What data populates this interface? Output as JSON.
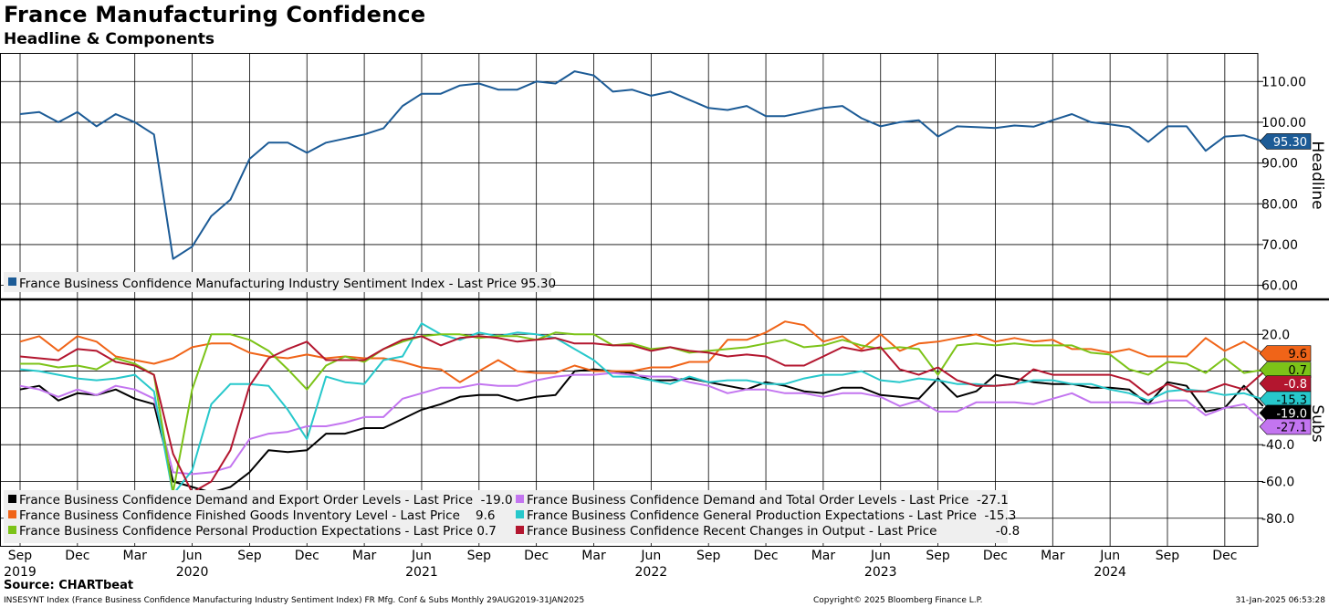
{
  "header": {
    "title": "France Manufacturing Confidence",
    "subtitle": "Headline & Components"
  },
  "footer": {
    "source": "Source: CHARTbeat",
    "description": "INSESYNT Index (France Business Confidence Manufacturing Industry Sentiment Index) FR Mfg. Conf & Subs  Monthly 29AUG2019-31JAN2025",
    "copyright": "Copyright© 2025 Bloomberg Finance L.P.",
    "timestamp": "31-Jan-2025 06:53:28"
  },
  "chart_data": {
    "type": "line",
    "x_axis": {
      "ticks": [
        {
          "month": 0,
          "label": "Sep"
        },
        {
          "month": 3,
          "label": "Dec"
        },
        {
          "month": 6,
          "label": "Mar"
        },
        {
          "month": 9,
          "label": "Jun"
        },
        {
          "month": 12,
          "label": "Sep"
        },
        {
          "month": 15,
          "label": "Dec"
        },
        {
          "month": 18,
          "label": "Mar"
        },
        {
          "month": 21,
          "label": "Jun"
        },
        {
          "month": 24,
          "label": "Sep"
        },
        {
          "month": 27,
          "label": "Dec"
        },
        {
          "month": 30,
          "label": "Mar"
        },
        {
          "month": 33,
          "label": "Jun"
        },
        {
          "month": 36,
          "label": "Sep"
        },
        {
          "month": 39,
          "label": "Dec"
        },
        {
          "month": 42,
          "label": "Mar"
        },
        {
          "month": 45,
          "label": "Jun"
        },
        {
          "month": 48,
          "label": "Sep"
        },
        {
          "month": 51,
          "label": "Dec"
        },
        {
          "month": 54,
          "label": "Mar"
        },
        {
          "month": 57,
          "label": "Jun"
        },
        {
          "month": 60,
          "label": "Sep"
        },
        {
          "month": 63,
          "label": "Dec"
        }
      ],
      "years": [
        {
          "month": 0,
          "label": "2019"
        },
        {
          "month": 9,
          "label": "2020"
        },
        {
          "month": 21,
          "label": "2021"
        },
        {
          "month": 33,
          "label": "2022"
        },
        {
          "month": 45,
          "label": "2023"
        },
        {
          "month": 57,
          "label": "2024"
        }
      ],
      "first_month": "Sep 2019",
      "last_month": "Jan 2025"
    },
    "panels": [
      {
        "id": "top",
        "axis_title": "Headline",
        "ylim": [
          57,
          117
        ],
        "yticks": [
          60,
          70,
          80,
          90,
          100,
          110
        ],
        "ytick_labels": [
          "60.00",
          "70.00",
          "80.00",
          "90.00",
          "100.00",
          "110.00"
        ],
        "grid": true,
        "series": [
          {
            "name": "France Business Confidence Manufacturing Industry Sentiment Index",
            "legend": "France Business Confidence Manufacturing Industry Sentiment Index - Last Price 95.30",
            "color": "#1c5b96",
            "last_label": "95.30",
            "values": [
              102,
              102.5,
              100,
              102.5,
              99,
              102,
              100,
              97,
              66.5,
              69.5,
              77,
              81,
              91,
              95,
              95,
              92.5,
              95,
              96,
              97,
              98.5,
              104,
              107,
              107,
              109,
              109.5,
              108,
              108,
              110,
              109.5,
              112.5,
              111.5,
              107.5,
              108,
              106.5,
              107.5,
              105.5,
              103.5,
              103,
              104,
              101.5,
              101.5,
              102.5,
              103.5,
              104,
              101,
              99,
              100,
              100.5,
              96.5,
              99,
              98.8,
              98.6,
              99.2,
              98.9,
              100.5,
              102,
              100,
              99.5,
              98.8,
              95.2,
              99,
              99,
              93,
              96.5,
              96.8,
              95.3
            ]
          }
        ]
      },
      {
        "id": "bottom",
        "axis_title": "Subs",
        "ylim": [
          -95,
          38
        ],
        "yticks": [
          -80,
          -60,
          -40,
          -20,
          0,
          20
        ],
        "ytick_labels": [
          "-80.0",
          "-60.0",
          "-40.0",
          "",
          "",
          "20.0"
        ],
        "grid": true,
        "series": [
          {
            "name": "France Business Confidence Demand and Export Order Levels",
            "legend": "France Business Confidence Demand and Export Order Levels - Last Price  -19.0",
            "color": "#000000",
            "last_label": "-19.0",
            "values": [
              -10,
              -8,
              -16,
              -12,
              -13,
              -10,
              -15,
              -18,
              -60,
              -63,
              -66,
              -63,
              -55,
              -43,
              -44,
              -43,
              -34,
              -34,
              -31,
              -31,
              -26,
              -21,
              -18,
              -14,
              -13,
              -13,
              -16,
              -14,
              -13,
              0,
              1,
              0,
              -1,
              -5,
              -5,
              -4,
              -6,
              -8,
              -10,
              -6,
              -8,
              -11,
              -12,
              -9,
              -9,
              -13,
              -14,
              -15,
              -4,
              -14,
              -11,
              -2,
              -4,
              -6,
              -7,
              -7,
              -9,
              -9,
              -10,
              -18,
              -6,
              -8,
              -22,
              -20,
              -8,
              -19
            ]
          },
          {
            "name": "France Business Confidence Demand and Total Order Levels",
            "legend": "France Business Confidence Demand and Total Order Levels - Last Price  -27.1",
            "color": "#c375f0",
            "last_label": "-27.1",
            "values": [
              -8,
              -10,
              -14,
              -10,
              -13,
              -8,
              -10,
              -15,
              -55,
              -56,
              -55,
              -52,
              -37,
              -34,
              -33,
              -30,
              -30,
              -28,
              -25,
              -25,
              -15,
              -12,
              -9,
              -9,
              -7,
              -8,
              -8,
              -5,
              -3,
              -2,
              -2,
              -1,
              -2,
              -3,
              -3,
              -6,
              -8,
              -12,
              -10,
              -10,
              -12,
              -12,
              -14,
              -12,
              -12,
              -14,
              -19,
              -16,
              -22,
              -22,
              -17,
              -17,
              -17,
              -18,
              -15,
              -12,
              -17,
              -17,
              -17,
              -18,
              -16,
              -16,
              -24,
              -20,
              -18,
              -27.1
            ]
          },
          {
            "name": "France Business Confidence Finished Goods Inventory Level",
            "legend": "France Business Confidence Finished Goods Inventory Level - Last Price    9.6",
            "color": "#f06418",
            "last_label": "9.6",
            "values": [
              16,
              19,
              11,
              19,
              16,
              8,
              6,
              4,
              7,
              13,
              15,
              15,
              10,
              8,
              7,
              9,
              7,
              8,
              7,
              7,
              5,
              2,
              1,
              -6,
              0,
              6,
              0,
              -1,
              -1,
              3,
              0,
              0,
              0,
              2,
              2,
              5,
              5,
              17,
              17,
              21,
              27,
              25,
              16,
              19,
              12,
              20,
              11,
              15,
              16,
              18,
              20,
              16,
              18,
              16,
              17,
              12,
              12,
              10,
              12,
              8,
              8,
              8,
              18,
              11,
              16,
              9.6
            ]
          },
          {
            "name": "France Business Confidence General Production Expectations",
            "legend": "France Business Confidence General Production Expectations - Last Price  -15.3",
            "color": "#27c8cb",
            "last_label": "-15.3",
            "values": [
              1,
              0,
              -2,
              -4,
              -5,
              -4,
              -2,
              -11,
              -67,
              -54,
              -18,
              -7,
              -7,
              -8,
              -21,
              -37,
              -3,
              -6,
              -7,
              6,
              8,
              26,
              20,
              17,
              21,
              19,
              21,
              20,
              18,
              12,
              6,
              -3,
              -3,
              -5,
              -7,
              -3,
              -6,
              -5,
              -5,
              -7,
              -7,
              -4,
              -2,
              -2,
              0,
              -5,
              -6,
              -4,
              -5,
              -7,
              -7,
              -8,
              -7,
              -5,
              -5,
              -7,
              -7,
              -10,
              -12,
              -16,
              -11,
              -10,
              -11,
              -13,
              -12,
              -15.3
            ]
          },
          {
            "name": "France Business Confidence Personal Production Expectations",
            "legend": "France Business Confidence Personal Production Expectations - Last Price 0.7",
            "color": "#7cc318",
            "last_label": "0.7",
            "values": [
              4,
              4,
              2,
              3,
              1,
              7,
              4,
              -2,
              -66,
              -10,
              20,
              20,
              17,
              11,
              1,
              -10,
              3,
              8,
              5,
              12,
              16,
              19,
              20,
              20,
              18,
              19,
              19,
              17,
              21,
              20,
              20,
              14,
              15,
              12,
              13,
              10,
              11,
              12,
              13,
              15,
              17,
              13,
              14,
              17,
              14,
              12,
              13,
              12,
              -2,
              14,
              15,
              14,
              15,
              14,
              14,
              14,
              10,
              9,
              1,
              -2,
              5,
              4,
              -1,
              7,
              -1,
              0.7
            ]
          },
          {
            "name": "France Business Confidence Recent Changes in Output",
            "legend": "France Business Confidence Recent Changes in Output - Last Price               -0.8",
            "color": "#b3162f",
            "last_label": "-0.8",
            "values": [
              8,
              7,
              6,
              12,
              11,
              5,
              3,
              -2,
              -45,
              -66,
              -60,
              -43,
              -8,
              7,
              12,
              16,
              6,
              6,
              6,
              12,
              17,
              19,
              14,
              18,
              19,
              18,
              16,
              17,
              18,
              15,
              15,
              14,
              14,
              11,
              13,
              11,
              10,
              8,
              9,
              8,
              3,
              3,
              8,
              13,
              11,
              13,
              1,
              -2,
              2,
              -5,
              -8,
              -8,
              -7,
              1,
              -2,
              -2,
              -2,
              -2,
              -5,
              -13,
              -7,
              -11,
              -11,
              -7,
              -10,
              -0.8
            ]
          }
        ]
      }
    ]
  }
}
